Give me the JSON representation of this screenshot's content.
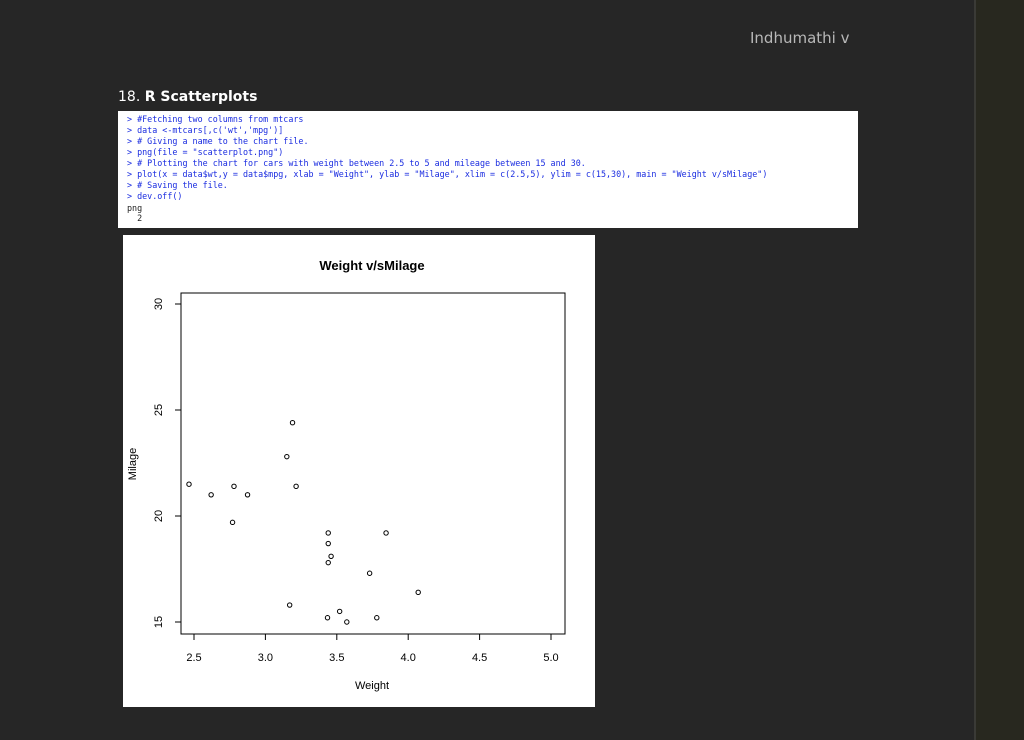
{
  "header": {
    "author": "Indhumathi v"
  },
  "section": {
    "number": "18.",
    "title": "R Scatterplots"
  },
  "code": {
    "lines": [
      "> #Fetching two columns from mtcars",
      "> data <-mtcars[,c('wt','mpg')]",
      "> # Giving a name to the chart file.",
      "> png(file = \"scatterplot.png\")",
      "> # Plotting the chart for cars with weight between 2.5 to 5 and mileage between 15 and 30.",
      "> plot(x = data$wt,y = data$mpg, xlab = \"Weight\", ylab = \"Milage\", xlim = c(2.5,5), ylim = c(15,30), main = \"Weight v/sMilage\")",
      "> # Saving the file.",
      "> dev.off()"
    ],
    "output": [
      "png",
      "  2"
    ]
  },
  "chart_data": {
    "type": "scatter",
    "title": "Weight v/sMilage",
    "xlabel": "Weight",
    "ylabel": "Milage",
    "xlim": [
      2.5,
      5
    ],
    "ylim": [
      15,
      30
    ],
    "xticks": [
      "2.5",
      "3.0",
      "3.5",
      "4.0",
      "4.5",
      "5.0"
    ],
    "yticks": [
      "15",
      "20",
      "25",
      "30"
    ],
    "grid": false,
    "points": [
      {
        "x": 2.465,
        "y": 21.5
      },
      {
        "x": 2.62,
        "y": 21.0
      },
      {
        "x": 2.77,
        "y": 19.7
      },
      {
        "x": 2.78,
        "y": 21.4
      },
      {
        "x": 2.875,
        "y": 21.0
      },
      {
        "x": 3.15,
        "y": 22.8
      },
      {
        "x": 3.17,
        "y": 15.8
      },
      {
        "x": 3.19,
        "y": 24.4
      },
      {
        "x": 3.215,
        "y": 21.4
      },
      {
        "x": 3.435,
        "y": 15.2
      },
      {
        "x": 3.44,
        "y": 18.7
      },
      {
        "x": 3.44,
        "y": 19.2
      },
      {
        "x": 3.44,
        "y": 17.8
      },
      {
        "x": 3.46,
        "y": 18.1
      },
      {
        "x": 3.52,
        "y": 15.5
      },
      {
        "x": 3.57,
        "y": 15.0
      },
      {
        "x": 3.73,
        "y": 17.3
      },
      {
        "x": 3.78,
        "y": 15.2
      },
      {
        "x": 3.845,
        "y": 19.2
      },
      {
        "x": 4.07,
        "y": 16.4
      }
    ]
  }
}
